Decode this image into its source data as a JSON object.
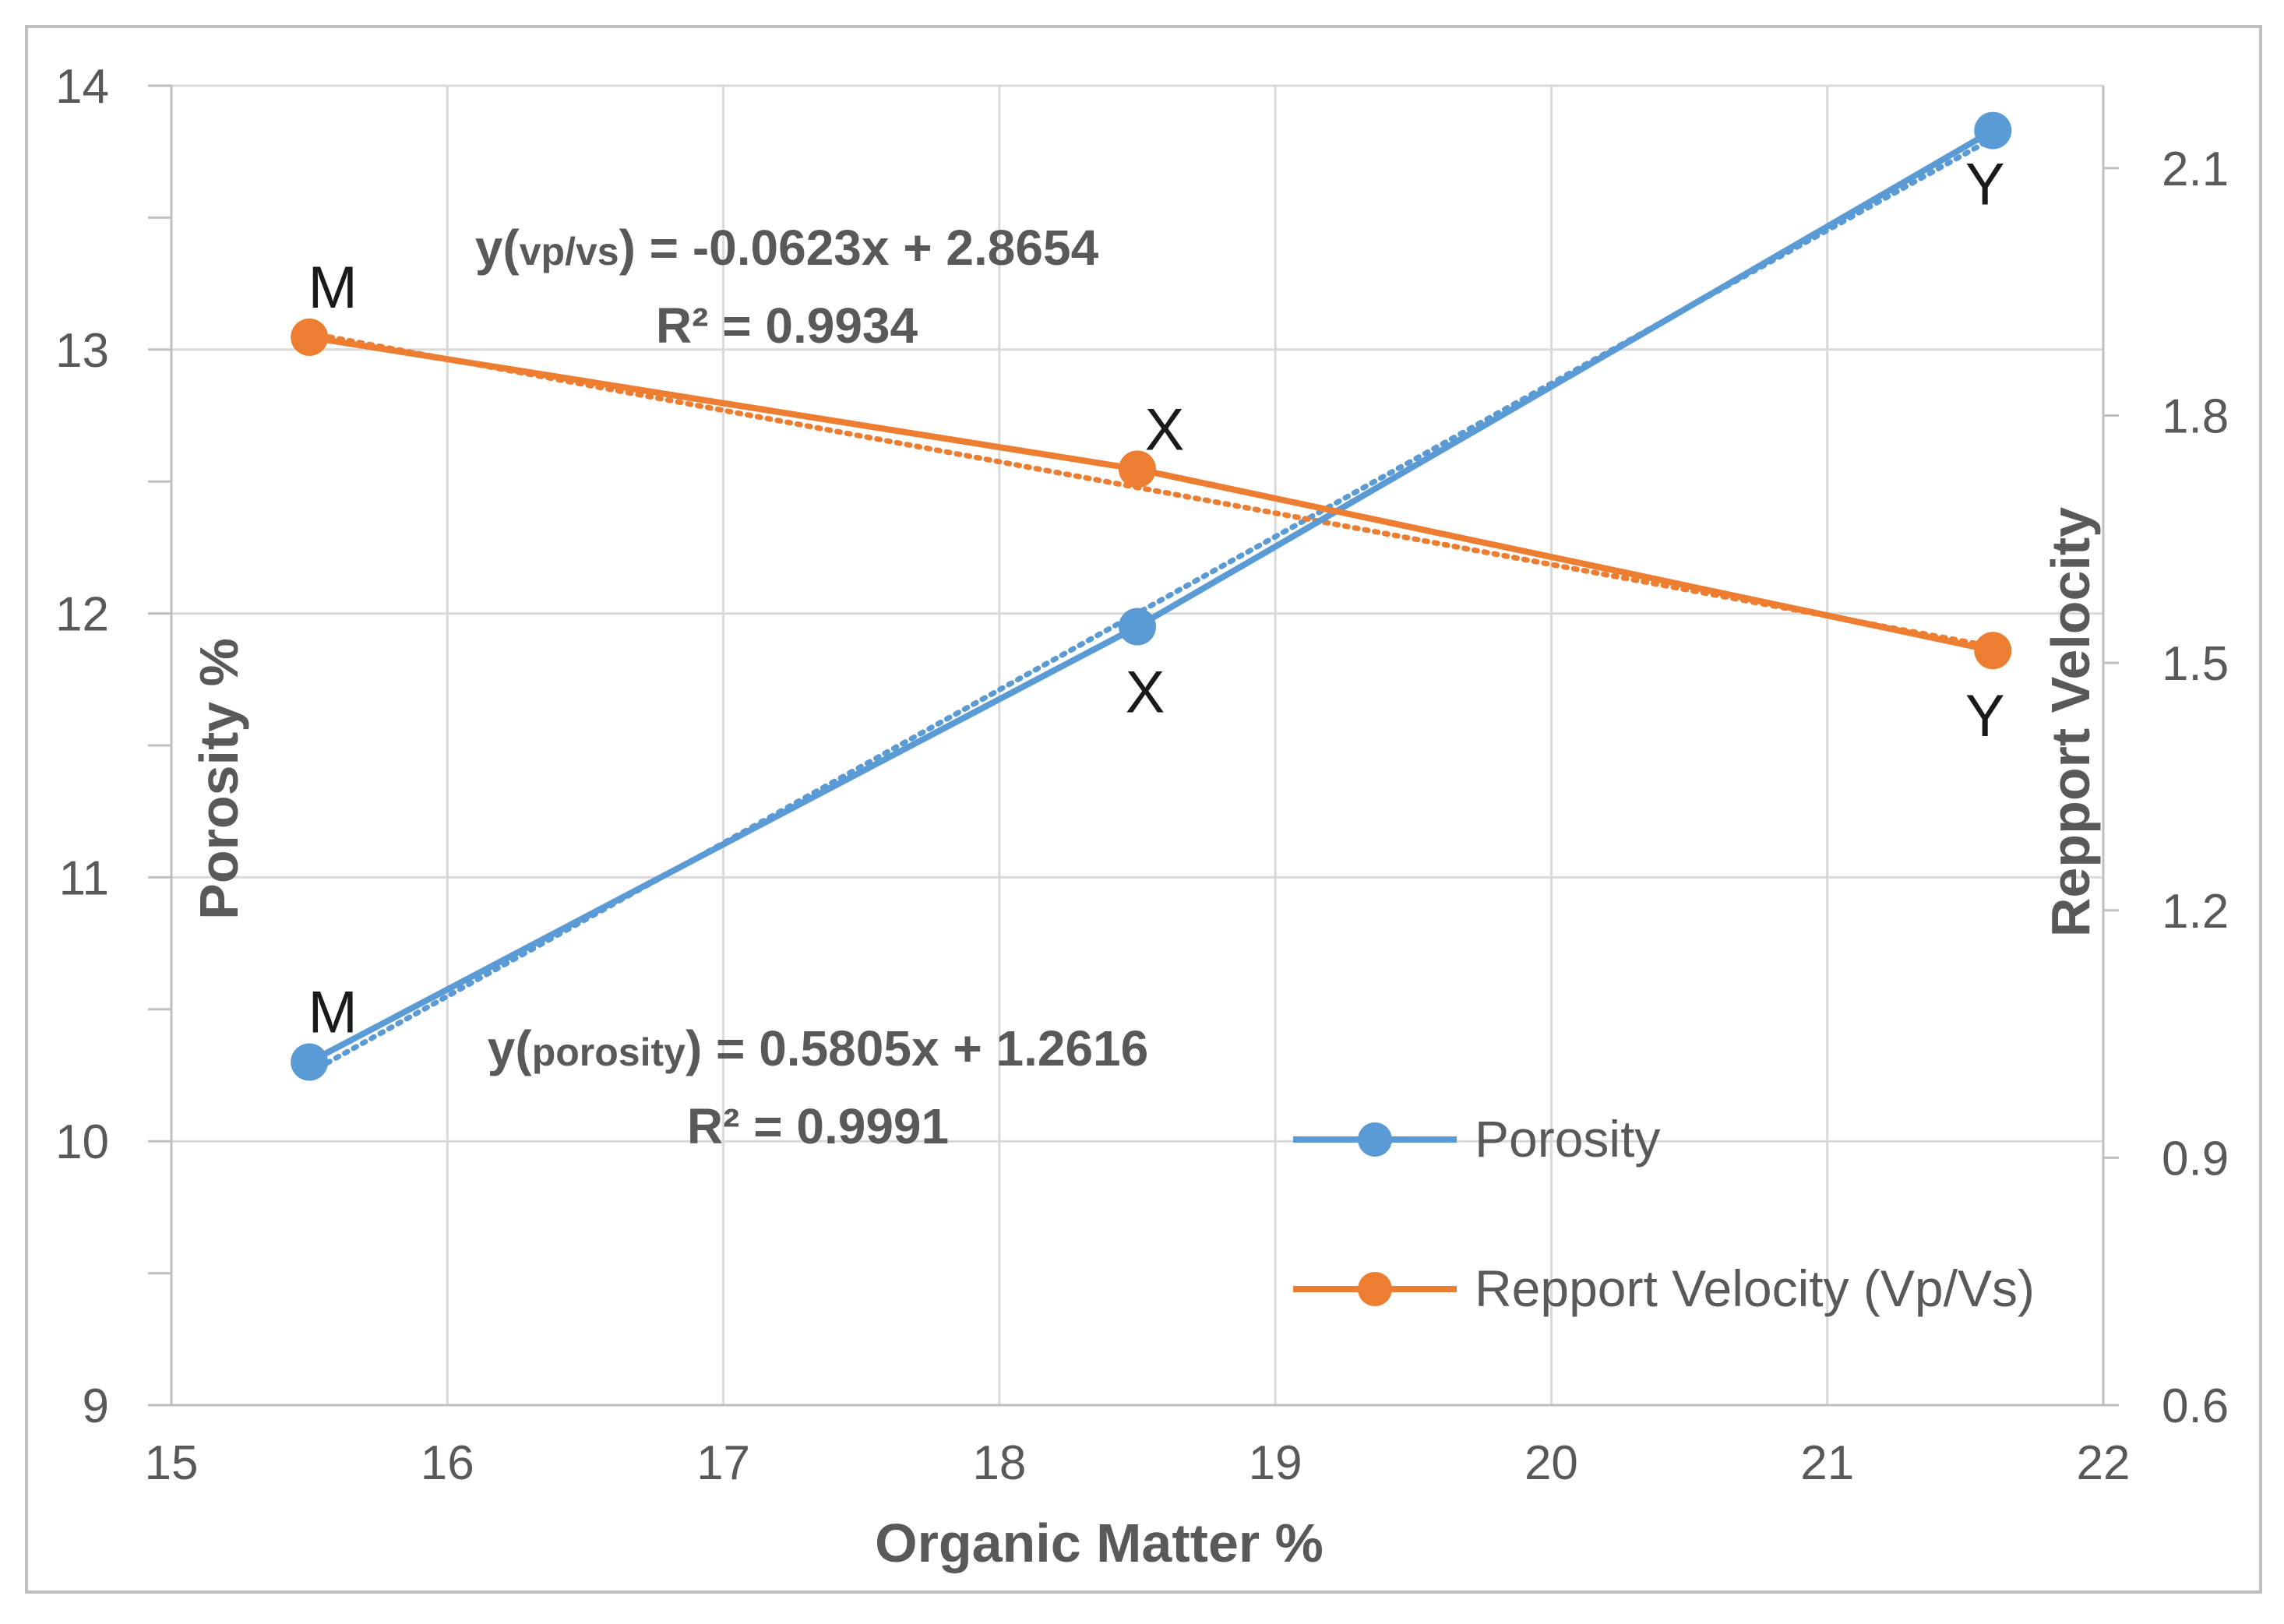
{
  "chart_data": {
    "type": "line",
    "x": [
      15.5,
      18.5,
      21.6
    ],
    "point_labels": [
      "M",
      "X",
      "Y"
    ],
    "series": [
      {
        "name": "Porosity",
        "axis": "left",
        "color": "#5b9bd5",
        "values": [
          10.3,
          11.95,
          13.83
        ]
      },
      {
        "name": "Repport Velocity (Vp/Vs)",
        "axis": "right",
        "color": "#ed7d31",
        "values": [
          1.895,
          1.735,
          1.515
        ]
      }
    ],
    "trendlines": [
      {
        "series": "Porosity",
        "style": "dotted",
        "slope": 0.5805,
        "intercept": 1.2616,
        "equation_prefix": "y(",
        "equation_sub": "porosity",
        "equation_suffix": ") = 0.5805x + 1.2616",
        "r2": "R² = 0.9991"
      },
      {
        "series": "Repport Velocity (Vp/Vs)",
        "style": "dotted",
        "slope": -0.0623,
        "intercept": 2.8654,
        "equation_prefix": "y(",
        "equation_sub": "vp/vs",
        "equation_suffix": ") = -0.0623x + 2.8654",
        "r2": "R² = 0.9934"
      }
    ],
    "xlabel": "Organic Matter  %",
    "ylabel": "Porosity %",
    "y2label": "Repport Velocity",
    "xlim": [
      15,
      22
    ],
    "ylim": [
      9,
      14
    ],
    "y2lim": [
      0.6,
      2.2
    ],
    "xticks": [
      "15",
      "16",
      "17",
      "18",
      "19",
      "20",
      "21",
      "22"
    ],
    "yticks": [
      "9",
      "10",
      "11",
      "12",
      "13",
      "14"
    ],
    "y2ticks": [
      "0.6",
      "0.9",
      "1.2",
      "1.5",
      "1.8",
      "2.1"
    ],
    "grid": true,
    "legend_position": "bottom-right"
  }
}
